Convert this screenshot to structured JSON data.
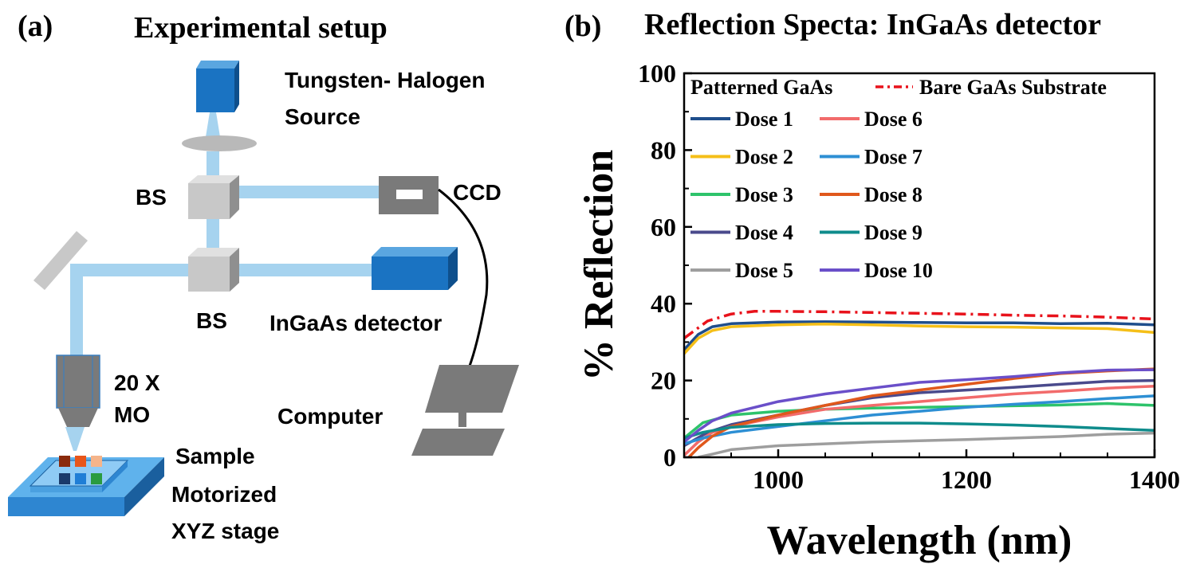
{
  "panel_a": {
    "label": "(a)",
    "title": "Experimental setup",
    "components": {
      "source": "Tungsten- Halogen",
      "source2": "Source",
      "bs_top": "BS",
      "bs_bottom": "BS",
      "ccd": "CCD",
      "ingaas": "InGaAs detector",
      "mo1": "20 X",
      "mo2": "MO",
      "computer": "Computer",
      "sample": "Sample",
      "stage1": "Motorized",
      "stage2": "XYZ stage"
    },
    "colors": {
      "beam": "#a6d3ef",
      "device_blue": "#1a73c2",
      "gray_block": "#c8c8c8",
      "dark_gray": "#7a7a7a"
    }
  },
  "panel_b": {
    "label": "(b)",
    "title": "Reflection Specta: InGaAs detector"
  },
  "chart_data": {
    "type": "line",
    "title": "Reflection Specta: InGaAs detector",
    "xlabel": "Wavelength (nm)",
    "ylabel": "% Reflection",
    "xlim": [
      900,
      1400
    ],
    "ylim": [
      0,
      100
    ],
    "xticks": [
      1000,
      1200,
      1400
    ],
    "yticks": [
      0,
      20,
      40,
      60,
      80,
      100
    ],
    "grid": false,
    "legend_placement": "top",
    "legend_header_left": "Patterned GaAs",
    "series": [
      {
        "name": "Bare GaAs Substrate",
        "color": "#e8121b",
        "dash": "dashdot",
        "points": [
          [
            900,
            31
          ],
          [
            925,
            35.5
          ],
          [
            950,
            37.3
          ],
          [
            975,
            38
          ],
          [
            1000,
            38
          ],
          [
            1050,
            37.9
          ],
          [
            1100,
            37.7
          ],
          [
            1150,
            37.5
          ],
          [
            1200,
            37.3
          ],
          [
            1250,
            37
          ],
          [
            1300,
            36.8
          ],
          [
            1350,
            36.5
          ],
          [
            1400,
            36
          ]
        ]
      },
      {
        "name": "Dose 1",
        "color": "#1f4e8c",
        "dash": "solid",
        "points": [
          [
            900,
            28
          ],
          [
            915,
            32
          ],
          [
            930,
            34
          ],
          [
            950,
            34.8
          ],
          [
            1000,
            35.2
          ],
          [
            1050,
            35.3
          ],
          [
            1100,
            35.2
          ],
          [
            1150,
            35.1
          ],
          [
            1200,
            35
          ],
          [
            1250,
            35
          ],
          [
            1300,
            34.8
          ],
          [
            1350,
            34.9
          ],
          [
            1400,
            34.5
          ]
        ]
      },
      {
        "name": "Dose 2",
        "color": "#f5bf18",
        "dash": "solid",
        "points": [
          [
            900,
            27
          ],
          [
            915,
            31
          ],
          [
            930,
            33
          ],
          [
            950,
            34
          ],
          [
            1000,
            34.5
          ],
          [
            1050,
            34.7
          ],
          [
            1100,
            34.5
          ],
          [
            1150,
            34.2
          ],
          [
            1200,
            34
          ],
          [
            1250,
            33.9
          ],
          [
            1300,
            33.7
          ],
          [
            1350,
            33.5
          ],
          [
            1400,
            32.5
          ]
        ]
      },
      {
        "name": "Dose 3",
        "color": "#2ec36b",
        "dash": "solid",
        "points": [
          [
            900,
            5
          ],
          [
            920,
            9
          ],
          [
            950,
            11
          ],
          [
            1000,
            12
          ],
          [
            1050,
            12.5
          ],
          [
            1100,
            12.8
          ],
          [
            1150,
            13
          ],
          [
            1200,
            13.2
          ],
          [
            1250,
            13.4
          ],
          [
            1300,
            13.6
          ],
          [
            1350,
            14
          ],
          [
            1400,
            13.5
          ]
        ]
      },
      {
        "name": "Dose 4",
        "color": "#4a4a8c",
        "dash": "solid",
        "points": [
          [
            900,
            3
          ],
          [
            925,
            6.5
          ],
          [
            950,
            8.5
          ],
          [
            1000,
            11
          ],
          [
            1050,
            13.5
          ],
          [
            1100,
            15.5
          ],
          [
            1150,
            16.8
          ],
          [
            1200,
            17.5
          ],
          [
            1250,
            18.2
          ],
          [
            1300,
            19
          ],
          [
            1350,
            19.8
          ],
          [
            1400,
            20
          ]
        ]
      },
      {
        "name": "Dose 5",
        "color": "#9e9e9e",
        "dash": "solid",
        "points": [
          [
            915,
            0
          ],
          [
            930,
            0.8
          ],
          [
            950,
            2
          ],
          [
            1000,
            3
          ],
          [
            1050,
            3.5
          ],
          [
            1100,
            4
          ],
          [
            1150,
            4.3
          ],
          [
            1200,
            4.6
          ],
          [
            1250,
            5
          ],
          [
            1300,
            5.4
          ],
          [
            1350,
            6
          ],
          [
            1400,
            6.3
          ]
        ]
      },
      {
        "name": "Dose 6",
        "color": "#f26b6b",
        "dash": "solid",
        "points": [
          [
            900,
            0.5
          ],
          [
            915,
            4
          ],
          [
            930,
            6.5
          ],
          [
            950,
            8
          ],
          [
            1000,
            10.5
          ],
          [
            1050,
            12.5
          ],
          [
            1100,
            13.5
          ],
          [
            1150,
            14.5
          ],
          [
            1200,
            15.5
          ],
          [
            1250,
            16.5
          ],
          [
            1300,
            17.2
          ],
          [
            1350,
            18
          ],
          [
            1400,
            18.5
          ]
        ]
      },
      {
        "name": "Dose 7",
        "color": "#2d8fd4",
        "dash": "solid",
        "points": [
          [
            900,
            3.5
          ],
          [
            920,
            5
          ],
          [
            950,
            6.5
          ],
          [
            1000,
            8
          ],
          [
            1050,
            9.5
          ],
          [
            1100,
            11
          ],
          [
            1150,
            12
          ],
          [
            1200,
            13
          ],
          [
            1250,
            13.8
          ],
          [
            1300,
            14.5
          ],
          [
            1350,
            15.3
          ],
          [
            1400,
            16
          ]
        ]
      },
      {
        "name": "Dose 8",
        "color": "#e0581c",
        "dash": "solid",
        "points": [
          [
            905,
            0
          ],
          [
            915,
            2.5
          ],
          [
            930,
            5.5
          ],
          [
            950,
            8
          ],
          [
            1000,
            11
          ],
          [
            1050,
            13.5
          ],
          [
            1100,
            16
          ],
          [
            1150,
            17.5
          ],
          [
            1200,
            19
          ],
          [
            1250,
            20.5
          ],
          [
            1300,
            21.8
          ],
          [
            1350,
            22.5
          ],
          [
            1400,
            23
          ]
        ]
      },
      {
        "name": "Dose 9",
        "color": "#0f8c8c",
        "dash": "solid",
        "points": [
          [
            900,
            5
          ],
          [
            920,
            6.5
          ],
          [
            950,
            7.8
          ],
          [
            1000,
            8.5
          ],
          [
            1050,
            8.8
          ],
          [
            1100,
            8.9
          ],
          [
            1150,
            8.9
          ],
          [
            1200,
            8.7
          ],
          [
            1250,
            8.4
          ],
          [
            1300,
            8
          ],
          [
            1350,
            7.5
          ],
          [
            1400,
            7
          ]
        ]
      },
      {
        "name": "Dose 10",
        "color": "#6a4fc9",
        "dash": "solid",
        "points": [
          [
            900,
            4
          ],
          [
            915,
            7
          ],
          [
            930,
            9.5
          ],
          [
            950,
            11.5
          ],
          [
            1000,
            14.5
          ],
          [
            1050,
            16.5
          ],
          [
            1100,
            18
          ],
          [
            1150,
            19.5
          ],
          [
            1200,
            20.2
          ],
          [
            1250,
            21
          ],
          [
            1300,
            22
          ],
          [
            1350,
            22.7
          ],
          [
            1400,
            22.8
          ]
        ]
      }
    ]
  }
}
